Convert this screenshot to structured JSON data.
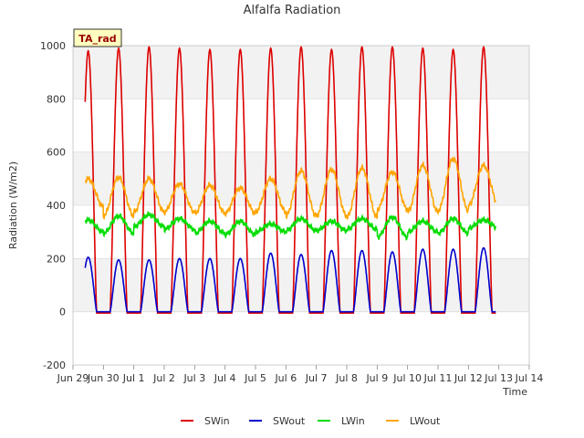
{
  "chart_data": {
    "type": "line",
    "title": "Alfalfa Radiation",
    "xlabel": "Time",
    "ylabel": "Radiation (W/m2)",
    "annotation": "TA_rad",
    "ylim": [
      -200,
      1000
    ],
    "yticks": [
      -200,
      0,
      200,
      400,
      600,
      800,
      1000
    ],
    "xlim": [
      0,
      15
    ],
    "xticks": [
      {
        "day": 0,
        "label": "Jun 29"
      },
      {
        "day": 1,
        "label": "Jun 30"
      },
      {
        "day": 2,
        "label": "Jul 1"
      },
      {
        "day": 3,
        "label": "Jul 2"
      },
      {
        "day": 4,
        "label": "Jul 3"
      },
      {
        "day": 5,
        "label": "Jul 4"
      },
      {
        "day": 6,
        "label": "Jul 5"
      },
      {
        "day": 7,
        "label": "Jul 6"
      },
      {
        "day": 8,
        "label": "Jul 7"
      },
      {
        "day": 9,
        "label": "Jul 8"
      },
      {
        "day": 10,
        "label": "Jul 9"
      },
      {
        "day": 11,
        "label": "Jul 10"
      },
      {
        "day": 12,
        "label": "Jul 11"
      },
      {
        "day": 13,
        "label": "Jul 12"
      },
      {
        "day": 14,
        "label": "Jul 13"
      },
      {
        "day": 15,
        "label": "Jul 14"
      }
    ],
    "legend_placement": "bottom",
    "grid_bands": true,
    "x": [
      0.5,
      1.5,
      2.5,
      3.5,
      4.5,
      5.5,
      6.5,
      7.5,
      8.5,
      9.5,
      10.5,
      11.5,
      12.5,
      13.5
    ],
    "series": [
      {
        "name": "SWin",
        "color": "#dd0000",
        "daily_peak": [
          980,
          990,
          995,
          990,
          985,
          985,
          990,
          995,
          985,
          995,
          995,
          990,
          985,
          995
        ],
        "night": -5
      },
      {
        "name": "SWout",
        "color": "#0000cc",
        "daily_peak": [
          205,
          195,
          195,
          200,
          200,
          200,
          220,
          215,
          230,
          230,
          225,
          235,
          235,
          240
        ],
        "night": 0
      },
      {
        "name": "LWin",
        "color": "#00dd00",
        "daily_peak": [
          345,
          360,
          365,
          350,
          340,
          340,
          330,
          350,
          340,
          350,
          355,
          340,
          350,
          345
        ],
        "night_min": [
          300,
          295,
          320,
          310,
          295,
          290,
          300,
          305,
          305,
          310,
          280,
          300,
          295,
          315
        ]
      },
      {
        "name": "LWout",
        "color": "#ffa500",
        "daily_peak": [
          500,
          505,
          500,
          480,
          475,
          465,
          500,
          530,
          535,
          540,
          525,
          550,
          575,
          550
        ],
        "night_min": [
          395,
          360,
          375,
          375,
          370,
          370,
          375,
          360,
          360,
          355,
          385,
          375,
          380,
          400
        ]
      }
    ]
  }
}
